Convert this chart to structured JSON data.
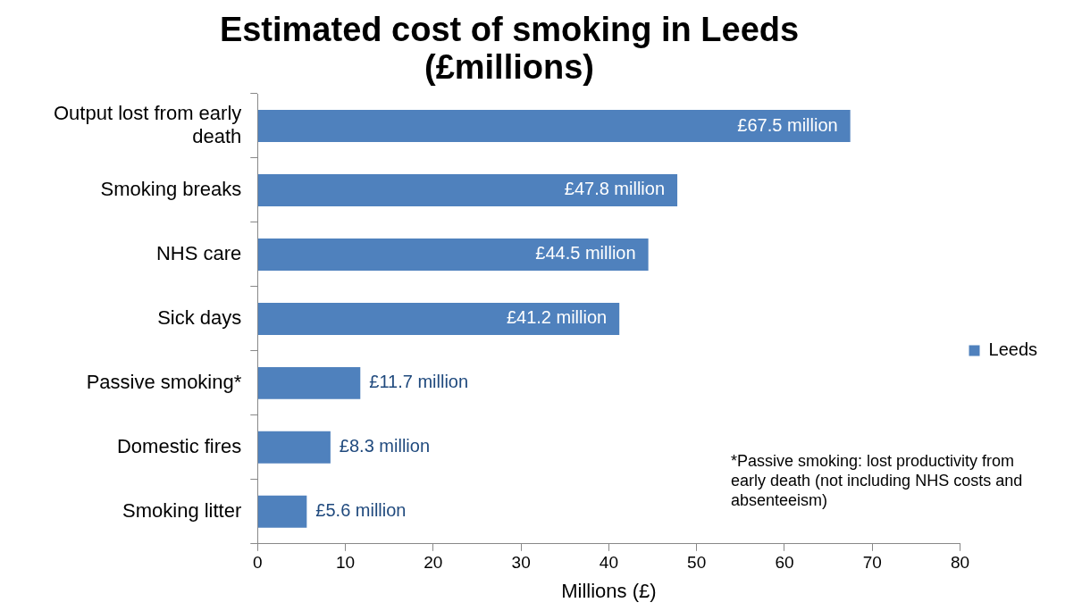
{
  "chart_data": {
    "type": "bar",
    "orientation": "horizontal",
    "title": "Estimated cost of smoking in Leeds (£millions)",
    "xlabel": "Millions (£)",
    "categories": [
      "Output lost from early death",
      "Smoking breaks",
      "NHS care",
      "Sick days",
      "Passive smoking*",
      "Domestic fires",
      "Smoking litter"
    ],
    "series": [
      {
        "name": "Leeds",
        "color": "#4f81bd",
        "values": [
          67.5,
          47.8,
          44.5,
          41.2,
          11.7,
          8.3,
          5.6
        ],
        "value_labels": [
          "£67.5 million",
          "£47.8 million",
          "£44.5 million",
          "£41.2 million",
          "£11.7 million",
          "£8.3 million",
          "£5.6 million"
        ]
      }
    ],
    "xlim": [
      0,
      80
    ],
    "xticks": [
      0,
      10,
      20,
      30,
      40,
      50,
      60,
      70,
      80
    ],
    "grid": false,
    "legend": "right",
    "annotations": [
      "*Passive smoking: lost productivity from early death (not including NHS costs and absenteeism)"
    ]
  }
}
